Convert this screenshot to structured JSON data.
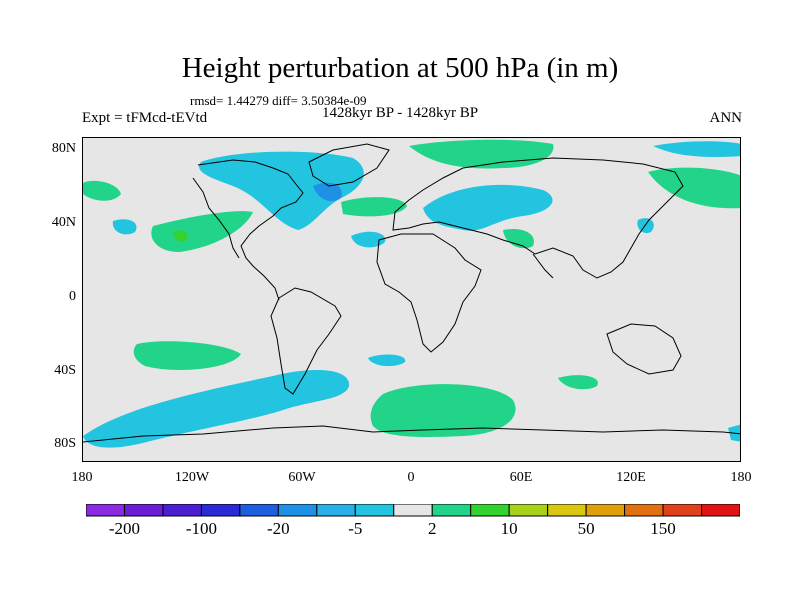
{
  "title": "Height perturbation at 500 hPa (in m)",
  "stats": "rmsd= 1.44279 diff= 3.50384e-09",
  "experiment": "Expt = tFMcd-tEVtd",
  "period": "1428kyr BP - 1428kyr BP",
  "season": "ANN",
  "lat_labels": [
    "80N",
    "40N",
    "0",
    "40S",
    "80S"
  ],
  "lon_labels": [
    "180",
    "120W",
    "60W",
    "0",
    "60E",
    "120E",
    "180"
  ],
  "colorbar": {
    "colors": [
      "#8a2be2",
      "#6a1ed8",
      "#4b1fd0",
      "#2a2ad6",
      "#1e5ee0",
      "#1e90e6",
      "#2ab0e8",
      "#22c4e0",
      "#e6e6e6",
      "#22d38a",
      "#35d12f",
      "#a8d21a",
      "#d9c70f",
      "#e0a00a",
      "#e07010",
      "#e0401a",
      "#e01414"
    ],
    "labels": [
      "-200",
      "-100",
      "-20",
      "-5",
      "2",
      "10",
      "50",
      "150"
    ]
  }
}
